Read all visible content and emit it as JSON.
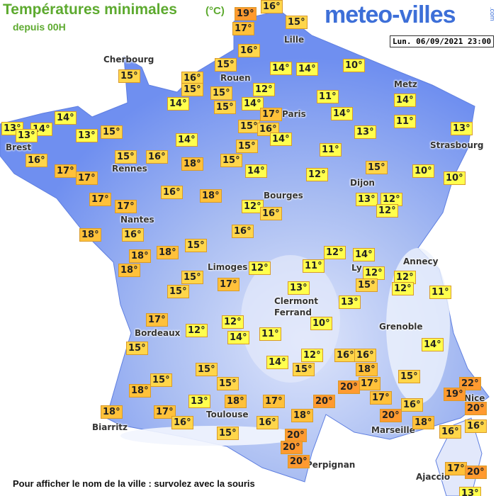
{
  "header": {
    "title": "Températures minimales",
    "unit": "(°C)",
    "subtitle": "depuis 00H"
  },
  "logo": {
    "name": "meteo-villes",
    "suffix": ".com"
  },
  "timestamp": "Lun. 06/09/2021 23:00",
  "cities": [
    "Cherbourg",
    "Rouen",
    "Lille",
    "Metz",
    "Paris",
    "Brest",
    "Rennes",
    "Strasbourg",
    "Dijon",
    "Bourges",
    "Nantes",
    "Annecy",
    "Limoges",
    "Ly",
    "Clermont",
    "Ferrand",
    "Grenoble",
    "Bordeaux",
    "Nice",
    "Toulouse",
    "Biarritz",
    "Marseille",
    "Perpignan",
    "Ajaccio"
  ],
  "temperatures": [
    "19°",
    "16°",
    "17°",
    "15°",
    "16°",
    "15°",
    "14°",
    "14°",
    "10°",
    "16°",
    "15°",
    "15°",
    "12°",
    "11°",
    "14°",
    "14°",
    "15°",
    "14°",
    "17°",
    "14°",
    "11°",
    "15°",
    "14°",
    "13°",
    "14°",
    "13°",
    "13°",
    "15°",
    "15°",
    "16°",
    "13°",
    "13°",
    "14°",
    "14°",
    "15°",
    "11°",
    "16°",
    "15°",
    "16°",
    "18°",
    "15°",
    "17°",
    "17°",
    "14°",
    "12°",
    "15°",
    "10°",
    "10°",
    "17°",
    "17°",
    "16°",
    "18°",
    "12°",
    "16°",
    "13°",
    "12°",
    "12°",
    "18°",
    "16°",
    "16°",
    "15°",
    "12°",
    "14°",
    "18°",
    "18°",
    "18°",
    "11°",
    "12°",
    "12°",
    "12°",
    "15°",
    "17°",
    "15°",
    "13°",
    "15°",
    "12°",
    "11°",
    "13°",
    "17°",
    "10°",
    "12°",
    "12°",
    "14°",
    "11°",
    "14°",
    "15°",
    "12°",
    "16°",
    "16°",
    "14°",
    "15°",
    "15°",
    "18°",
    "15°",
    "15°",
    "15°",
    "17°",
    "20°",
    "22°",
    "18°",
    "19°",
    "17°",
    "13°",
    "18°",
    "17°",
    "20°",
    "16°",
    "20°",
    "18°",
    "17°",
    "20°",
    "18°",
    "16°",
    "16°",
    "18°",
    "16°",
    "15°",
    "20°",
    "16°",
    "20°",
    "20°",
    "17°",
    "20°",
    "13°"
  ],
  "footer": "Pour afficher le nom de la ville : survolez avec la souris"
}
